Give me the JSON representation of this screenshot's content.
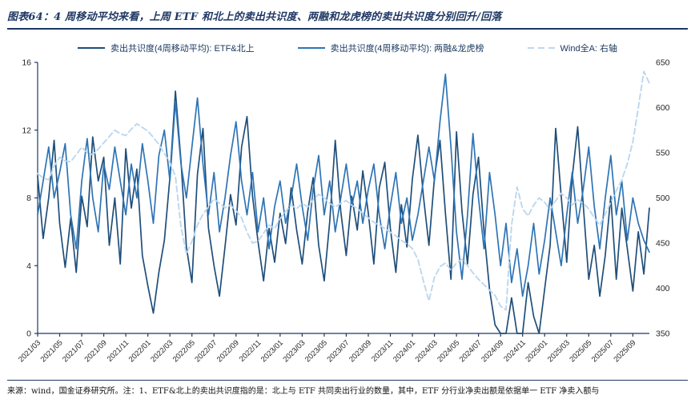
{
  "page": {
    "title": "图表64：4 周移动平均来看，上周 ETF 和北上的卖出共识度、两融和龙虎榜的卖出共识度分别回升/回落",
    "source_note": "来源：wind，国金证券研究所。注：1、ETF&北上的卖出共识度指的是：北上与 ETF 共同卖出行业的数量，其中，ETF 分行业净卖出额是依据单一 ETF 净卖入额与"
  },
  "colors": {
    "etf_north": "#1f4e79",
    "margin_lhb": "#2e74b5",
    "wind_all_a": "#bdd7ee",
    "axis": "#1f3864"
  },
  "chart_data": {
    "type": "line",
    "title": "",
    "grid": false,
    "legend_position": "top",
    "x_axis": {
      "labels": [
        "2021/03",
        "2021/05",
        "2021/07",
        "2021/09",
        "2021/11",
        "2022/01",
        "2022/03",
        "2022/05",
        "2022/07",
        "2022/09",
        "2022/11",
        "2023/01",
        "2023/03",
        "2023/05",
        "2023/07",
        "2023/09",
        "2023/11",
        "2024/01",
        "2024/03",
        "2024/05",
        "2024/07",
        "2024/09",
        "2024/11",
        "2025/01",
        "2025/03",
        "2025/05",
        "2025/07",
        "2025/09"
      ],
      "label_months": [
        0,
        2,
        4,
        6,
        8,
        10,
        12,
        14,
        16,
        18,
        20,
        22,
        24,
        26,
        28,
        30,
        32,
        34,
        36,
        38,
        40,
        42,
        44,
        46,
        48,
        50,
        52,
        54
      ]
    },
    "left_axis": {
      "min": 0,
      "max": 16,
      "ticks": [
        0,
        4,
        8,
        12,
        16
      ]
    },
    "right_axis": {
      "min": 350,
      "max": 650,
      "ticks": [
        350,
        400,
        450,
        500,
        550,
        600,
        650
      ]
    },
    "x_start_month": 0,
    "x_step": 0.5,
    "x_end_month": 55.5,
    "series": [
      {
        "name": "卖出共识度(4周移动平均): ETF&北上",
        "axis": "left",
        "dash": false,
        "color": "#1f4e79",
        "values": [
          9.3,
          5.6,
          8.0,
          11.4,
          6.5,
          3.9,
          6.8,
          3.6,
          8.1,
          6.3,
          11.6,
          9.0,
          10.4,
          5.2,
          8.0,
          4.1,
          10.9,
          7.4,
          9.7,
          4.6,
          2.8,
          1.2,
          3.6,
          5.5,
          9.2,
          14.3,
          10.2,
          5.1,
          3.0,
          9.4,
          12.1,
          6.2,
          4.0,
          2.2,
          5.1,
          8.2,
          6.4,
          11.0,
          12.8,
          8.1,
          5.4,
          3.1,
          6.2,
          4.2,
          7.1,
          5.3,
          8.6,
          6.1,
          4.1,
          7.2,
          9.2,
          5.2,
          3.1,
          6.6,
          11.4,
          7.2,
          4.6,
          8.1,
          6.1,
          9.6,
          7.1,
          4.1,
          8.6,
          10.1,
          6.2,
          3.6,
          7.6,
          5.1,
          9.1,
          11.7,
          8.1,
          5.2,
          9.2,
          11.4,
          7.1,
          3.2,
          11.9,
          7.2,
          4.1,
          8.2,
          10.4,
          6.0,
          2.6,
          0.5,
          0.0,
          0.0,
          2.1,
          0.0,
          0.0,
          3.0,
          1.0,
          0.0,
          2.6,
          5.2,
          12.1,
          8.1,
          4.2,
          9.2,
          12.2,
          7.6,
          3.2,
          5.2,
          2.2,
          4.6,
          8.1,
          3.2,
          7.4,
          5.0,
          2.5,
          6.0,
          3.5,
          7.4
        ]
      },
      {
        "name": "卖出共识度(4周移动平均): 两融&龙虎榜",
        "axis": "left",
        "dash": false,
        "color": "#2e74b5",
        "values": [
          7.0,
          9.0,
          11.0,
          8.0,
          9.5,
          11.2,
          7.0,
          5.0,
          9.0,
          11.5,
          8.0,
          6.0,
          10.0,
          8.5,
          11.0,
          9.0,
          7.0,
          10.0,
          8.0,
          11.2,
          9.0,
          6.5,
          10.5,
          12.0,
          9.0,
          13.7,
          10.0,
          8.0,
          11.0,
          13.9,
          10.0,
          7.0,
          9.5,
          6.0,
          8.0,
          10.5,
          12.5,
          9.0,
          7.0,
          9.5,
          6.0,
          8.0,
          5.0,
          7.5,
          9.0,
          6.5,
          8.0,
          10.0,
          7.5,
          5.5,
          8.5,
          10.5,
          7.0,
          9.0,
          6.0,
          8.0,
          10.0,
          7.5,
          9.0,
          6.5,
          8.5,
          10.0,
          7.0,
          5.0,
          7.5,
          9.5,
          6.5,
          8.0,
          5.5,
          7.0,
          9.0,
          11.0,
          9.0,
          12.5,
          15.3,
          11.0,
          6.0,
          3.2,
          7.0,
          11.8,
          8.0,
          5.0,
          9.5,
          7.0,
          4.0,
          6.5,
          3.0,
          5.0,
          2.2,
          4.0,
          6.5,
          3.5,
          5.5,
          8.0,
          6.0,
          4.0,
          7.0,
          9.5,
          6.5,
          8.5,
          11.0,
          7.5,
          5.0,
          8.0,
          10.5,
          7.0,
          9.0,
          5.5,
          8.0,
          6.5,
          5.5,
          4.8
        ]
      },
      {
        "name": "Wind全A: 右轴",
        "axis": "right",
        "dash": true,
        "color": "#bdd7ee",
        "values": [
          527,
          522,
          520,
          535,
          545,
          541,
          540,
          548,
          556,
          550,
          548,
          554,
          561,
          568,
          575,
          571,
          569,
          576,
          582,
          578,
          574,
          567,
          559,
          549,
          539,
          524,
          468,
          438,
          452,
          470,
          482,
          490,
          499,
          494,
          489,
          492,
          486,
          478,
          462,
          450,
          452,
          461,
          470,
          466,
          477,
          485,
          492,
          488,
          494,
          490,
          498,
          504,
          500,
          494,
          490,
          494,
          497,
          492,
          488,
          483,
          478,
          473,
          470,
          466,
          462,
          458,
          453,
          449,
          444,
          432,
          408,
          386,
          412,
          424,
          428,
          420,
          428,
          432,
          425,
          417,
          410,
          404,
          398,
          392,
          380,
          376,
          470,
          512,
          488,
          480,
          492,
          500,
          495,
          487,
          497,
          505,
          500,
          492,
          498,
          494,
          488,
          478,
          470,
          482,
          495,
          508,
          520,
          538,
          562,
          600,
          640,
          627
        ]
      }
    ]
  }
}
